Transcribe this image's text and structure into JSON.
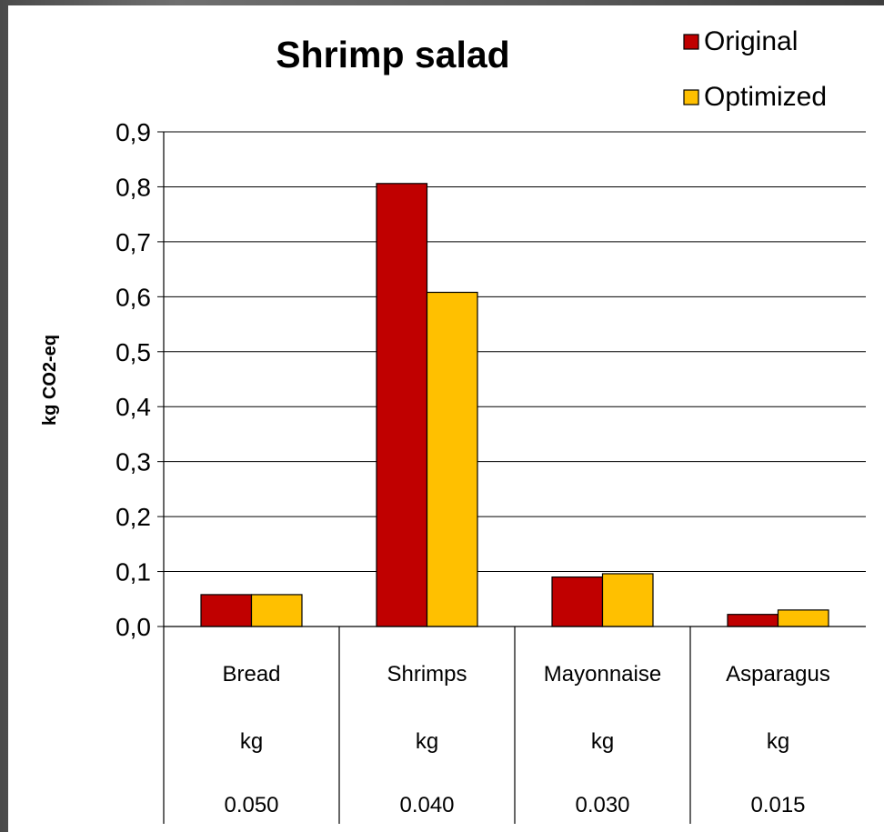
{
  "chart_data": {
    "type": "bar",
    "title": "Shrimp salad",
    "ylabel": "kg CO2-eq",
    "xlabel": "",
    "ylim": [
      0,
      0.9
    ],
    "yticks": [
      "0,0",
      "0,1",
      "0,2",
      "0,3",
      "0,4",
      "0,5",
      "0,6",
      "0,7",
      "0,8",
      "0,9"
    ],
    "grid": true,
    "legend_position": "top-right",
    "categories": [
      "Bread",
      "Shrimps",
      "Mayonnaise",
      "Asparagus"
    ],
    "table_rows": [
      [
        "kg",
        "kg",
        "kg",
        "kg"
      ],
      [
        "0.050",
        "0.040",
        "0.030",
        "0.015"
      ]
    ],
    "series": [
      {
        "name": "Original",
        "color": "#c00000",
        "values": [
          0.058,
          0.806,
          0.09,
          0.022
        ]
      },
      {
        "name": "Optimized",
        "color": "#ffc000",
        "values": [
          0.058,
          0.608,
          0.096,
          0.03
        ]
      }
    ]
  }
}
